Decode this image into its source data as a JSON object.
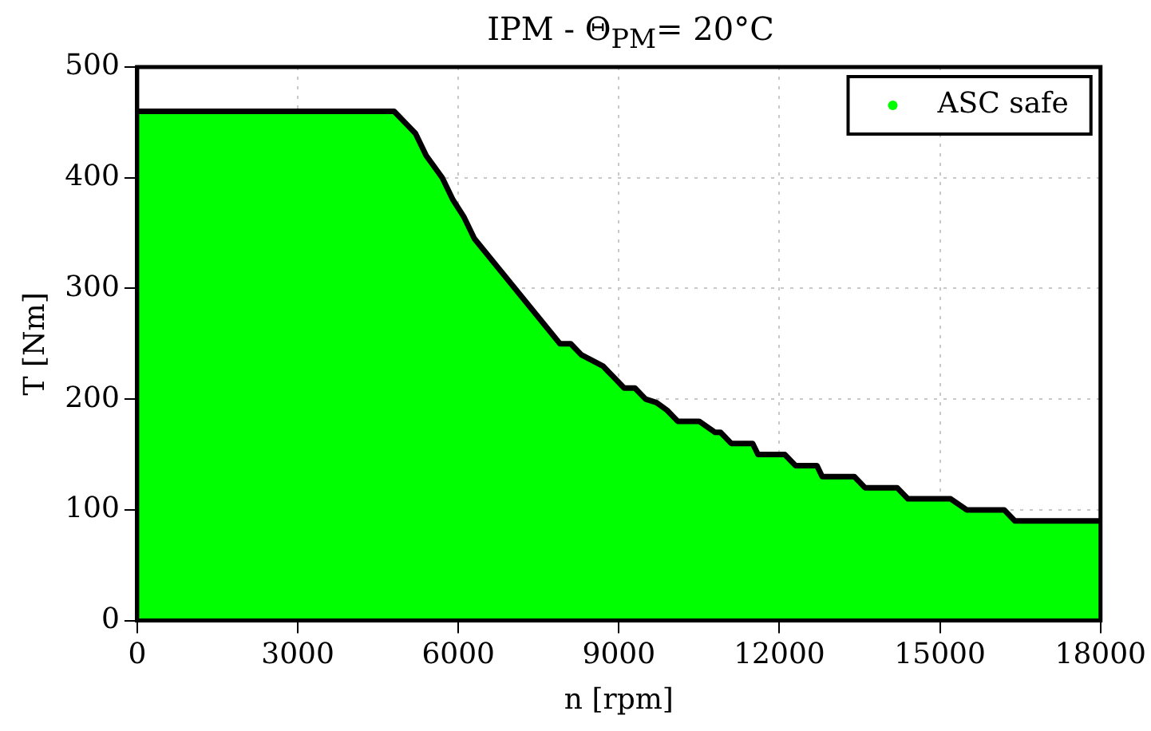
{
  "chart_data": {
    "type": "area",
    "title": "IPM - Θ$_{PM}$= 20°C",
    "xlabel": "n [rpm]",
    "ylabel": "T [Nm]",
    "x": [
      0,
      4800,
      5200,
      5400,
      5700,
      5900,
      6100,
      6300,
      7900,
      8100,
      8300,
      8700,
      9100,
      9300,
      9500,
      9700,
      9900,
      10100,
      10500,
      10800,
      10900,
      11100,
      11500,
      11600,
      12100,
      12300,
      12700,
      12800,
      13400,
      13600,
      14200,
      14400,
      15200,
      15500,
      16200,
      16400,
      18000
    ],
    "series": [
      {
        "name": "ASC safe",
        "type": "area",
        "color": "#00ff00",
        "values": [
          460,
          460,
          440,
          420,
          400,
          380,
          365,
          345,
          250,
          250,
          240,
          230,
          210,
          210,
          200,
          197,
          190,
          180,
          180,
          170,
          170,
          160,
          160,
          150,
          150,
          140,
          140,
          130,
          130,
          120,
          120,
          110,
          110,
          100,
          100,
          90,
          90
        ]
      }
    ],
    "xlim": [
      0,
      18000
    ],
    "xticks": [
      0,
      3000,
      6000,
      9000,
      12000,
      15000,
      18000
    ],
    "ylim": [
      0,
      500
    ],
    "yticks": [
      0,
      100,
      200,
      300,
      400,
      500
    ],
    "grid": true,
    "legend": "top right"
  }
}
